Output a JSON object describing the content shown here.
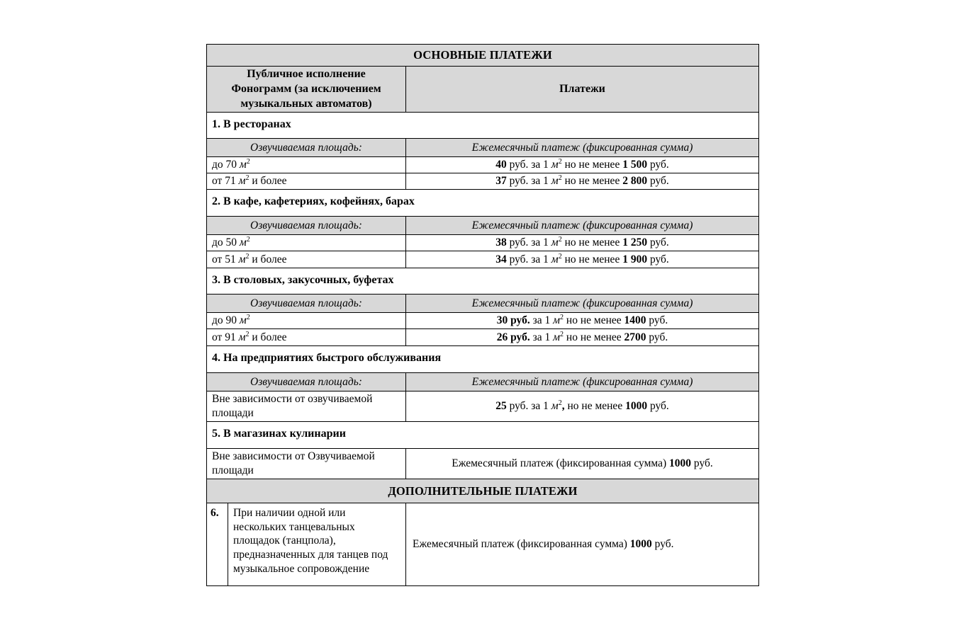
{
  "colors": {
    "header_bg": "#d8d8d8",
    "border": "#000000",
    "page_bg": "#ffffff"
  },
  "table": {
    "main_header": "ОСНОВНЫЕ ПЛАТЕЖИ",
    "left_column_header": [
      {
        "t": "Публичное исполнение"
      },
      {
        "br": true
      },
      {
        "t": "Фонограмм (за исключением"
      },
      {
        "br": true
      },
      {
        "t": "музыкальных автоматов)"
      }
    ],
    "right_column_header": "Платежи",
    "area_subheader": "Озвучиваемая площадь:",
    "payment_subheader": "Ежемесячный платеж (фиксированная сумма)",
    "additional_header": "ДОПОЛНИТЕЛЬНЫЕ ПЛАТЕЖИ",
    "sections": [
      {
        "title": "1. В ресторанах",
        "rows": [
          {
            "area": [
              {
                "t": "до 70 "
              },
              {
                "t": "м",
                "i": true
              },
              {
                "t": "2",
                "sup": true
              }
            ],
            "payment": [
              {
                "t": "40",
                "b": true
              },
              {
                "t": " руб. за 1 "
              },
              {
                "t": "м",
                "i": true
              },
              {
                "t": "2",
                "sup": true
              },
              {
                "t": " но не менее "
              },
              {
                "t": "1 500",
                "b": true
              },
              {
                "t": " руб."
              }
            ]
          },
          {
            "area": [
              {
                "t": "от 71 "
              },
              {
                "t": "м",
                "i": true
              },
              {
                "t": "2",
                "sup": true
              },
              {
                "t": " и более"
              }
            ],
            "payment": [
              {
                "t": "37",
                "b": true
              },
              {
                "t": " руб. за 1 "
              },
              {
                "t": "м",
                "i": true
              },
              {
                "t": "2",
                "sup": true
              },
              {
                "t": " но не менее "
              },
              {
                "t": "2 800",
                "b": true
              },
              {
                "t": " руб."
              }
            ]
          }
        ]
      },
      {
        "title": "2. В кафе, кафетериях, кофейнях, барах",
        "rows": [
          {
            "area": [
              {
                "t": "до 50 "
              },
              {
                "t": "м",
                "i": true
              },
              {
                "t": "2",
                "sup": true
              }
            ],
            "payment": [
              {
                "t": "38",
                "b": true
              },
              {
                "t": " руб. за 1 "
              },
              {
                "t": "м",
                "i": true
              },
              {
                "t": "2",
                "sup": true
              },
              {
                "t": " но не менее "
              },
              {
                "t": "1 250",
                "b": true
              },
              {
                "t": " руб."
              }
            ]
          },
          {
            "area": [
              {
                "t": "от 51 "
              },
              {
                "t": "м",
                "i": true
              },
              {
                "t": "2",
                "sup": true
              },
              {
                "t": " и более"
              }
            ],
            "payment": [
              {
                "t": "34",
                "b": true
              },
              {
                "t": " руб. за 1 "
              },
              {
                "t": "м",
                "i": true
              },
              {
                "t": "2",
                "sup": true
              },
              {
                "t": " но не менее "
              },
              {
                "t": "1 900",
                "b": true
              },
              {
                "t": " руб."
              }
            ]
          }
        ]
      },
      {
        "title": "3. В столовых, закусочных, буфетах",
        "rows": [
          {
            "area": [
              {
                "t": "до 90 "
              },
              {
                "t": "м",
                "i": true
              },
              {
                "t": "2",
                "sup": true
              }
            ],
            "payment": [
              {
                "t": "30 руб.",
                "b": true
              },
              {
                "t": " за 1 "
              },
              {
                "t": "м",
                "i": true
              },
              {
                "t": "2",
                "sup": true
              },
              {
                "t": " но не менее "
              },
              {
                "t": "1400",
                "b": true
              },
              {
                "t": " руб."
              }
            ]
          },
          {
            "area": [
              {
                "t": "от 91 "
              },
              {
                "t": "м",
                "i": true
              },
              {
                "t": "2",
                "sup": true
              },
              {
                "t": " и более"
              }
            ],
            "payment": [
              {
                "t": "26 руб.",
                "b": true
              },
              {
                "t": " за 1 "
              },
              {
                "t": "м",
                "i": true
              },
              {
                "t": "2",
                "sup": true
              },
              {
                "t": " но не менее "
              },
              {
                "t": "2700",
                "b": true
              },
              {
                "t": " руб."
              }
            ]
          }
        ]
      },
      {
        "title": "4. На предприятиях быстрого обслуживания",
        "rows": [
          {
            "area": [
              {
                "t": "Вне зависимости от озвучиваемой площади"
              }
            ],
            "payment": [
              {
                "t": "25",
                "b": true
              },
              {
                "t": " руб. за 1 "
              },
              {
                "t": "м",
                "i": true
              },
              {
                "t": "2",
                "sup": true
              },
              {
                "t": ",",
                "b": true
              },
              {
                "t": " но не менее "
              },
              {
                "t": "1000",
                "b": true
              },
              {
                "t": " руб."
              }
            ]
          }
        ]
      },
      {
        "title": "5. В магазинах кулинарии",
        "rows": [
          {
            "area": [
              {
                "t": "Вне зависимости от Озвучиваемой площади"
              }
            ],
            "payment": [
              {
                "t": "Ежемесячный платеж (фиксированная сумма) "
              },
              {
                "t": "1000",
                "b": true
              },
              {
                "t": " руб."
              }
            ]
          }
        ]
      }
    ],
    "additional_section": {
      "number": "6.",
      "description": "При наличии одной или нескольких танцевальных площадок (танцпола), предназначенных для танцев под музыкальное сопровождение",
      "payment": [
        {
          "t": "Ежемесячный платеж (фиксированная сумма) "
        },
        {
          "t": "1000",
          "b": true
        },
        {
          "t": " руб."
        }
      ]
    }
  }
}
